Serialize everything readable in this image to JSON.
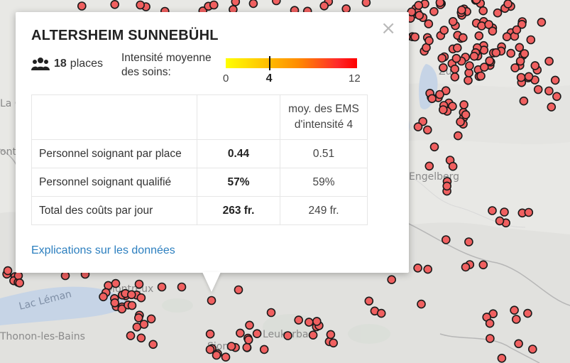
{
  "popup": {
    "title": "ALTERSHEIM SUNNEBÜHL",
    "places_count": "18",
    "places_label": "places",
    "intensity_label": "Intensité moyenne des soins:",
    "scale": {
      "min": 0,
      "max": 12,
      "value": 4
    },
    "table": {
      "header_compare": "moy. des EMS d'intensité 4",
      "rows": [
        {
          "label": "Personnel soignant par place",
          "value": "0.44",
          "compare": "0.51"
        },
        {
          "label": "Personnel soignant qualifié",
          "value": "57%",
          "compare": "59%"
        },
        {
          "label": "Total des coûts par jour",
          "value": "263 fr.",
          "compare": "249 fr."
        }
      ]
    },
    "link": "Explications sur les données",
    "close": "×"
  },
  "map": {
    "labels": [
      "Lac Léman",
      "Montreux",
      "Thonon-les-Bains",
      "Sion",
      "Engelberg",
      "Zug",
      "La C",
      "ont",
      "Leukerbad"
    ],
    "marker_color": "#f06060",
    "marker_stroke": "#1a1a1a",
    "popup_icon": "group-people-icon"
  }
}
